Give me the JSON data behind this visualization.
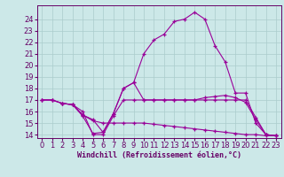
{
  "xlabel": "Windchill (Refroidissement éolien,°C)",
  "background_color": "#cce8e8",
  "grid_color": "#aacccc",
  "line_color": "#990099",
  "xlim": [
    -0.5,
    23.5
  ],
  "ylim": [
    13.7,
    25.2
  ],
  "xticks": [
    0,
    1,
    2,
    3,
    4,
    5,
    6,
    7,
    8,
    9,
    10,
    11,
    12,
    13,
    14,
    15,
    16,
    17,
    18,
    19,
    20,
    21,
    22,
    23
  ],
  "yticks": [
    14,
    15,
    16,
    17,
    18,
    19,
    20,
    21,
    22,
    23,
    24
  ],
  "lines": [
    {
      "x": [
        0,
        1,
        2,
        3,
        4,
        5,
        6,
        7,
        8,
        9,
        10,
        11,
        12,
        13,
        14,
        15,
        16,
        17,
        18,
        19,
        20,
        21,
        22,
        23
      ],
      "y": [
        17,
        17,
        16.7,
        16.6,
        15.6,
        14.1,
        14.2,
        15.8,
        18.0,
        18.5,
        21.0,
        22.2,
        22.7,
        23.8,
        24.0,
        24.6,
        24.0,
        21.7,
        20.3,
        17.6,
        17.6,
        15.0,
        14.0,
        13.9
      ]
    },
    {
      "x": [
        0,
        1,
        2,
        3,
        4,
        5,
        6,
        7,
        8,
        9,
        10,
        11,
        12,
        13,
        14,
        15,
        16,
        17,
        18,
        19,
        20,
        21,
        22,
        23
      ],
      "y": [
        17,
        17,
        16.7,
        16.6,
        16.0,
        14.0,
        14.0,
        15.6,
        17.0,
        17.0,
        17.0,
        17.0,
        17.0,
        17.0,
        17.0,
        17.0,
        17.0,
        17.0,
        17.0,
        17.0,
        17.0,
        15.5,
        14.0,
        13.9
      ]
    },
    {
      "x": [
        2,
        3,
        4,
        5,
        6,
        7,
        8,
        9,
        10,
        11,
        12,
        13,
        14,
        15,
        16,
        17,
        18,
        19,
        20,
        21,
        22,
        23
      ],
      "y": [
        16.7,
        16.6,
        15.7,
        15.3,
        14.2,
        15.8,
        18.0,
        18.5,
        17.0,
        17.0,
        17.0,
        17.0,
        17.0,
        17.0,
        17.2,
        17.3,
        17.4,
        17.2,
        16.8,
        15.3,
        14.0,
        13.9
      ]
    },
    {
      "x": [
        0,
        1,
        2,
        3,
        4,
        5,
        6,
        7,
        8,
        9,
        10,
        11,
        12,
        13,
        14,
        15,
        16,
        17,
        18,
        19,
        20,
        21,
        22,
        23
      ],
      "y": [
        17,
        17,
        16.7,
        16.6,
        15.7,
        15.2,
        15.0,
        15.0,
        15.0,
        15.0,
        15.0,
        14.9,
        14.8,
        14.7,
        14.6,
        14.5,
        14.4,
        14.3,
        14.2,
        14.1,
        14.0,
        14.0,
        13.9,
        13.9
      ]
    }
  ],
  "tick_fontsize": 6,
  "xlabel_fontsize": 6,
  "tick_color": "#660066",
  "spine_color": "#660066"
}
